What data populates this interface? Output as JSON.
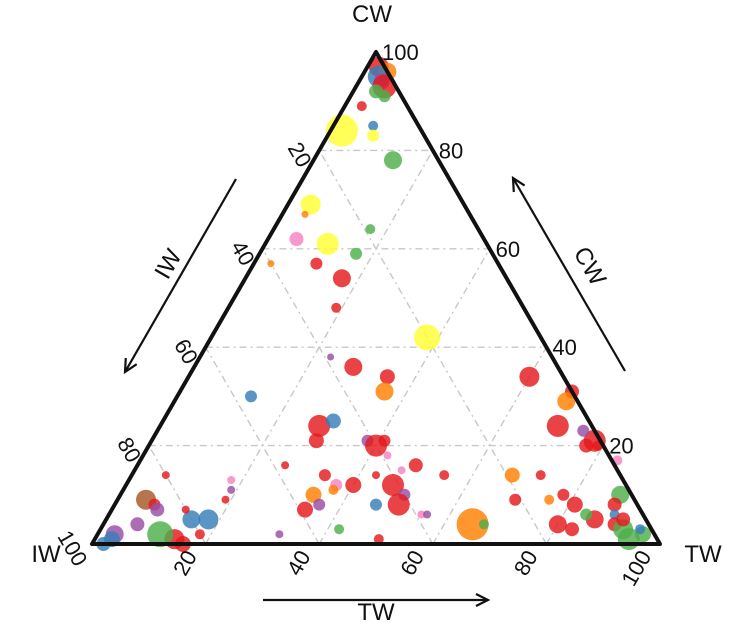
{
  "chart_data": {
    "type": "scatter",
    "subtype": "ternary-bubble",
    "title": "",
    "vertices": {
      "top": "CW",
      "left": "IW",
      "right": "TW"
    },
    "axis_titles": {
      "left": "IW",
      "right": "CW",
      "bottom": "TW"
    },
    "ticks": {
      "left": [
        "20",
        "40",
        "60",
        "80",
        "100"
      ],
      "right": [
        "20",
        "40",
        "60",
        "80",
        "100"
      ],
      "bottom": [
        "20",
        "40",
        "60",
        "80",
        "100"
      ]
    },
    "range": [
      0,
      100
    ],
    "grid": true,
    "legend": "none",
    "colors": {
      "red": "#e41a1c",
      "blue": "#377eb8",
      "green": "#4daf4a",
      "purple": "#984ea3",
      "orange": "#ff7f00",
      "yellow": "#ffff33",
      "brown": "#a65628",
      "pink": "#f781bf"
    },
    "points": [
      {
        "tw": 2,
        "cw": 97,
        "size": 20,
        "color": "red"
      },
      {
        "tw": 4,
        "cw": 96,
        "size": 18,
        "color": "orange"
      },
      {
        "tw": 3,
        "cw": 95,
        "size": 22,
        "color": "blue"
      },
      {
        "tw": 4,
        "cw": 94,
        "size": 16,
        "color": "purple"
      },
      {
        "tw": 5,
        "cw": 93,
        "size": 24,
        "color": "red"
      },
      {
        "tw": 4,
        "cw": 92,
        "size": 14,
        "color": "green"
      },
      {
        "tw": 6,
        "cw": 91,
        "size": 12,
        "color": "green"
      },
      {
        "tw": 3,
        "cw": 89,
        "size": 10,
        "color": "red"
      },
      {
        "tw": 2,
        "cw": 84,
        "size": 32,
        "color": "yellow"
      },
      {
        "tw": 7,
        "cw": 85,
        "size": 10,
        "color": "blue"
      },
      {
        "tw": 8,
        "cw": 83,
        "size": 12,
        "color": "yellow"
      },
      {
        "tw": 14,
        "cw": 78,
        "size": 18,
        "color": "green"
      },
      {
        "tw": 4,
        "cw": 69,
        "size": 20,
        "color": "yellow"
      },
      {
        "tw": 4,
        "cw": 67,
        "size": 7,
        "color": "orange"
      },
      {
        "tw": 5,
        "cw": 62,
        "size": 14,
        "color": "pink"
      },
      {
        "tw": 11,
        "cw": 61,
        "size": 22,
        "color": "yellow"
      },
      {
        "tw": 17,
        "cw": 64,
        "size": 10,
        "color": "green"
      },
      {
        "tw": 17,
        "cw": 59,
        "size": 12,
        "color": "green"
      },
      {
        "tw": 11,
        "cw": 57,
        "size": 12,
        "color": "red"
      },
      {
        "tw": 3,
        "cw": 57,
        "size": 7,
        "color": "orange"
      },
      {
        "tw": 17,
        "cw": 54,
        "size": 18,
        "color": "red"
      },
      {
        "tw": 19,
        "cw": 48,
        "size": 10,
        "color": "red"
      },
      {
        "tw": 38,
        "cw": 42,
        "size": 26,
        "color": "yellow"
      },
      {
        "tw": 35,
        "cw": 34,
        "size": 15,
        "color": "red"
      },
      {
        "tw": 36,
        "cw": 31,
        "size": 18,
        "color": "orange"
      },
      {
        "tw": 28,
        "cw": 36,
        "size": 18,
        "color": "red"
      },
      {
        "tw": 23,
        "cw": 38,
        "size": 7,
        "color": "purple"
      },
      {
        "tw": 28,
        "cw": 24,
        "size": 22,
        "color": "red"
      },
      {
        "tw": 38,
        "cw": 21,
        "size": 12,
        "color": "purple"
      },
      {
        "tw": 40,
        "cw": 20,
        "size": 22,
        "color": "red"
      },
      {
        "tw": 41,
        "cw": 21,
        "size": 12,
        "color": "red"
      },
      {
        "tw": 43,
        "cw": 18,
        "size": 8,
        "color": "pink"
      },
      {
        "tw": 30,
        "cw": 25,
        "size": 15,
        "color": "blue"
      },
      {
        "tw": 29,
        "cw": 21,
        "size": 15,
        "color": "red"
      },
      {
        "tw": 13,
        "cw": 30,
        "size": 12,
        "color": "blue"
      },
      {
        "tw": 26,
        "cw": 16,
        "size": 8,
        "color": "red"
      },
      {
        "tw": 34,
        "cw": 14,
        "size": 12,
        "color": "red"
      },
      {
        "tw": 34,
        "cw": 10,
        "size": 16,
        "color": "orange"
      },
      {
        "tw": 47,
        "cw": 15,
        "size": 8,
        "color": "pink"
      },
      {
        "tw": 49,
        "cw": 16,
        "size": 14,
        "color": "red"
      },
      {
        "tw": 47,
        "cw": 12,
        "size": 22,
        "color": "red"
      },
      {
        "tw": 50,
        "cw": 10,
        "size": 12,
        "color": "purple"
      },
      {
        "tw": 50,
        "cw": 8,
        "size": 22,
        "color": "red"
      },
      {
        "tw": 55,
        "cw": 6,
        "size": 8,
        "color": "pink"
      },
      {
        "tw": 65,
        "cw": 4,
        "size": 32,
        "color": "orange"
      },
      {
        "tw": 67,
        "cw": 14,
        "size": 15,
        "color": "orange"
      },
      {
        "tw": 72,
        "cw": 14,
        "size": 10,
        "color": "red"
      },
      {
        "tw": 70,
        "cw": 9,
        "size": 12,
        "color": "red"
      },
      {
        "tw": 67,
        "cw": 4,
        "size": 10,
        "color": "green"
      },
      {
        "tw": 56,
        "cw": 6,
        "size": 8,
        "color": "purple"
      },
      {
        "tw": 50,
        "cw": 1,
        "size": 10,
        "color": "red"
      },
      {
        "tw": 55,
        "cw": 14,
        "size": 10,
        "color": "red"
      },
      {
        "tw": 40,
        "cw": 12,
        "size": 16,
        "color": "red"
      },
      {
        "tw": 43,
        "cw": 14,
        "size": 8,
        "color": "red"
      },
      {
        "tw": 37,
        "cw": 12,
        "size": 12,
        "color": "pink"
      },
      {
        "tw": 37,
        "cw": 11,
        "size": 10,
        "color": "orange"
      },
      {
        "tw": 36,
        "cw": 8,
        "size": 12,
        "color": "purple"
      },
      {
        "tw": 34,
        "cw": 7,
        "size": 16,
        "color": "red"
      },
      {
        "tw": 32,
        "cw": 2,
        "size": 8,
        "color": "purple"
      },
      {
        "tw": 42,
        "cw": 3,
        "size": 10,
        "color": "green"
      },
      {
        "tw": 46,
        "cw": 8,
        "size": 12,
        "color": "blue"
      },
      {
        "tw": 18,
        "cw": 13,
        "size": 8,
        "color": "pink"
      },
      {
        "tw": 19,
        "cw": 9,
        "size": 8,
        "color": "red"
      },
      {
        "tw": 18,
        "cw": 5,
        "size": 20,
        "color": "blue"
      },
      {
        "tw": 15,
        "cw": 5,
        "size": 18,
        "color": "blue"
      },
      {
        "tw": 18,
        "cw": 2,
        "size": 10,
        "color": "red"
      },
      {
        "tw": 16,
        "cw": 0,
        "size": 16,
        "color": "red"
      },
      {
        "tw": 14,
        "cw": 1,
        "size": 20,
        "color": "red"
      },
      {
        "tw": 11,
        "cw": 2,
        "size": 26,
        "color": "green"
      },
      {
        "tw": 13,
        "cw": 7,
        "size": 8,
        "color": "red"
      },
      {
        "tw": 19,
        "cw": 11,
        "size": 8,
        "color": "purple"
      },
      {
        "tw": 6,
        "cw": 14,
        "size": 8,
        "color": "red"
      },
      {
        "tw": 5,
        "cw": 9,
        "size": 20,
        "color": "brown"
      },
      {
        "tw": 7,
        "cw": 8,
        "size": 12,
        "color": "red"
      },
      {
        "tw": 8,
        "cw": 7,
        "size": 14,
        "color": "purple"
      },
      {
        "tw": 6,
        "cw": 4,
        "size": 14,
        "color": "purple"
      },
      {
        "tw": 3,
        "cw": 2,
        "size": 18,
        "color": "purple"
      },
      {
        "tw": 3,
        "cw": 1,
        "size": 16,
        "color": "blue"
      },
      {
        "tw": 2,
        "cw": 0,
        "size": 14,
        "color": "blue"
      },
      {
        "tw": 78,
        "cw": 21,
        "size": 22,
        "color": "red"
      },
      {
        "tw": 75,
        "cw": 23,
        "size": 12,
        "color": "purple"
      },
      {
        "tw": 77,
        "cw": 20,
        "size": 14,
        "color": "red"
      },
      {
        "tw": 79,
        "cw": 20,
        "size": 10,
        "color": "red"
      },
      {
        "tw": 84,
        "cw": 17,
        "size": 10,
        "color": "pink"
      },
      {
        "tw": 70,
        "cw": 24,
        "size": 22,
        "color": "red"
      },
      {
        "tw": 69,
        "cw": 31,
        "size": 14,
        "color": "red"
      },
      {
        "tw": 69,
        "cw": 29,
        "size": 18,
        "color": "orange"
      },
      {
        "tw": 60,
        "cw": 34,
        "size": 20,
        "color": "red"
      },
      {
        "tw": 88,
        "cw": 10,
        "size": 18,
        "color": "green"
      },
      {
        "tw": 88,
        "cw": 8,
        "size": 14,
        "color": "red"
      },
      {
        "tw": 89,
        "cw": 6,
        "size": 10,
        "color": "blue"
      },
      {
        "tw": 90,
        "cw": 4,
        "size": 14,
        "color": "red"
      },
      {
        "tw": 92,
        "cw": 3,
        "size": 20,
        "color": "green"
      },
      {
        "tw": 94,
        "cw": 1,
        "size": 22,
        "color": "green"
      },
      {
        "tw": 96,
        "cw": 2,
        "size": 16,
        "color": "green"
      },
      {
        "tw": 95,
        "cw": 3,
        "size": 10,
        "color": "blue"
      },
      {
        "tw": 86,
        "cw": 5,
        "size": 18,
        "color": "red"
      },
      {
        "tw": 81,
        "cw": 8,
        "size": 16,
        "color": "red"
      },
      {
        "tw": 83,
        "cw": 3,
        "size": 14,
        "color": "red"
      },
      {
        "tw": 80,
        "cw": 4,
        "size": 18,
        "color": "red"
      },
      {
        "tw": 76,
        "cw": 9,
        "size": 10,
        "color": "orange"
      },
      {
        "tw": 78,
        "cw": 10,
        "size": 12,
        "color": "red"
      },
      {
        "tw": 91,
        "cw": 5,
        "size": 14,
        "color": "red"
      },
      {
        "tw": 84,
        "cw": 6,
        "size": 12,
        "color": "green"
      }
    ]
  }
}
